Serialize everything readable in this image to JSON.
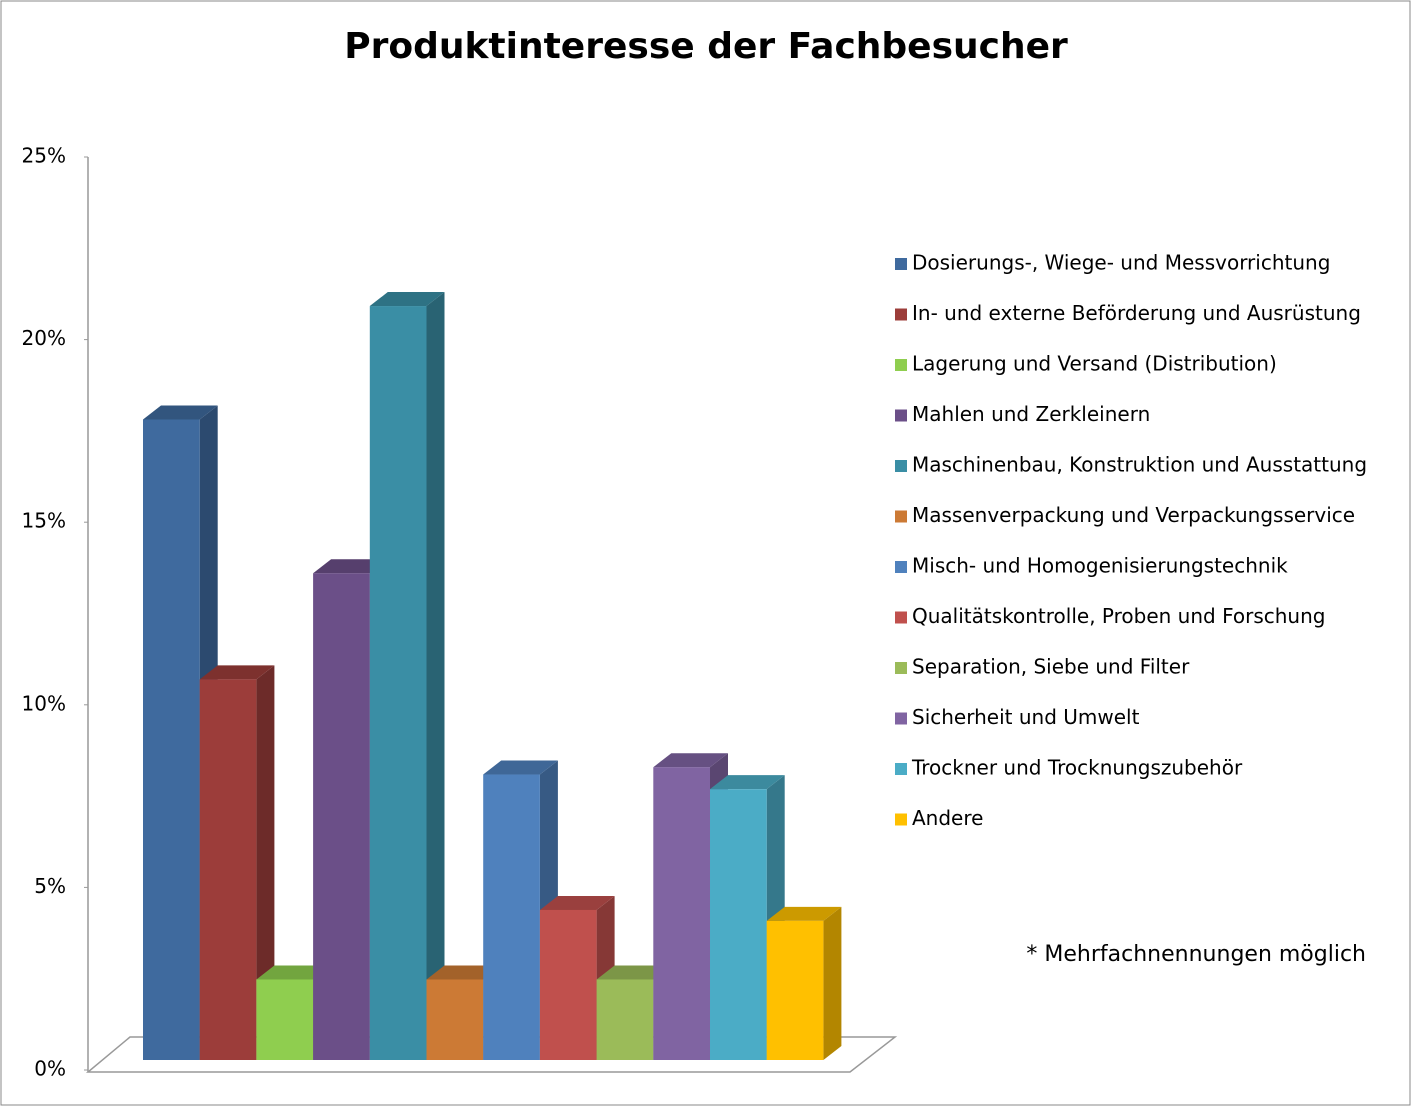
{
  "chart_data": {
    "type": "bar3d",
    "title": "Produktinteresse der Fachbesucher",
    "annotation": "* Mehrfachnennungen  möglich",
    "ylim": [
      0,
      25
    ],
    "yticks": [
      {
        "value": 0,
        "label": "0%"
      },
      {
        "value": 5,
        "label": "5%"
      },
      {
        "value": 10,
        "label": "10%"
      },
      {
        "value": 15,
        "label": "15%"
      },
      {
        "value": 20,
        "label": "20%"
      },
      {
        "value": 25,
        "label": "25%"
      }
    ],
    "legend": "right",
    "series": [
      {
        "name": "Dosierungs-, Wiege- und Messvorrichtung",
        "color": "#3f6a9e",
        "values": [
          17.5
        ]
      },
      {
        "name": "In- und externe Beförderung und Ausrüstung",
        "color": "#9c3d3a",
        "values": [
          10.4
        ]
      },
      {
        "name": "Lagerung und Versand (Distribution)",
        "color": "#8fce4f",
        "values": [
          2.2
        ]
      },
      {
        "name": "Mahlen und Zerkleinern",
        "color": "#6b4f88",
        "values": [
          13.3
        ]
      },
      {
        "name": "Maschinenbau, Konstruktion und Ausstattung",
        "color": "#3a8ea5",
        "values": [
          20.6
        ]
      },
      {
        "name": "Massenverpackung und Verpackungsservice",
        "color": "#cc7a35",
        "values": [
          2.2
        ]
      },
      {
        "name": "Misch- und Homogenisierungstechnik",
        "color": "#4f81bd",
        "values": [
          7.8
        ]
      },
      {
        "name": "Qualitätskontrolle, Proben und Forschung",
        "color": "#c0504d",
        "values": [
          4.1
        ]
      },
      {
        "name": "Separation, Siebe und Filter",
        "color": "#9bbb59",
        "values": [
          2.2
        ]
      },
      {
        "name": "Sicherheit und Umwelt",
        "color": "#8064a2",
        "values": [
          8.0
        ]
      },
      {
        "name": "Trockner und Trocknungszubehör",
        "color": "#4bacc6",
        "values": [
          7.4
        ]
      },
      {
        "name": "Andere",
        "color": "#ffc000",
        "values": [
          3.8
        ]
      }
    ]
  }
}
